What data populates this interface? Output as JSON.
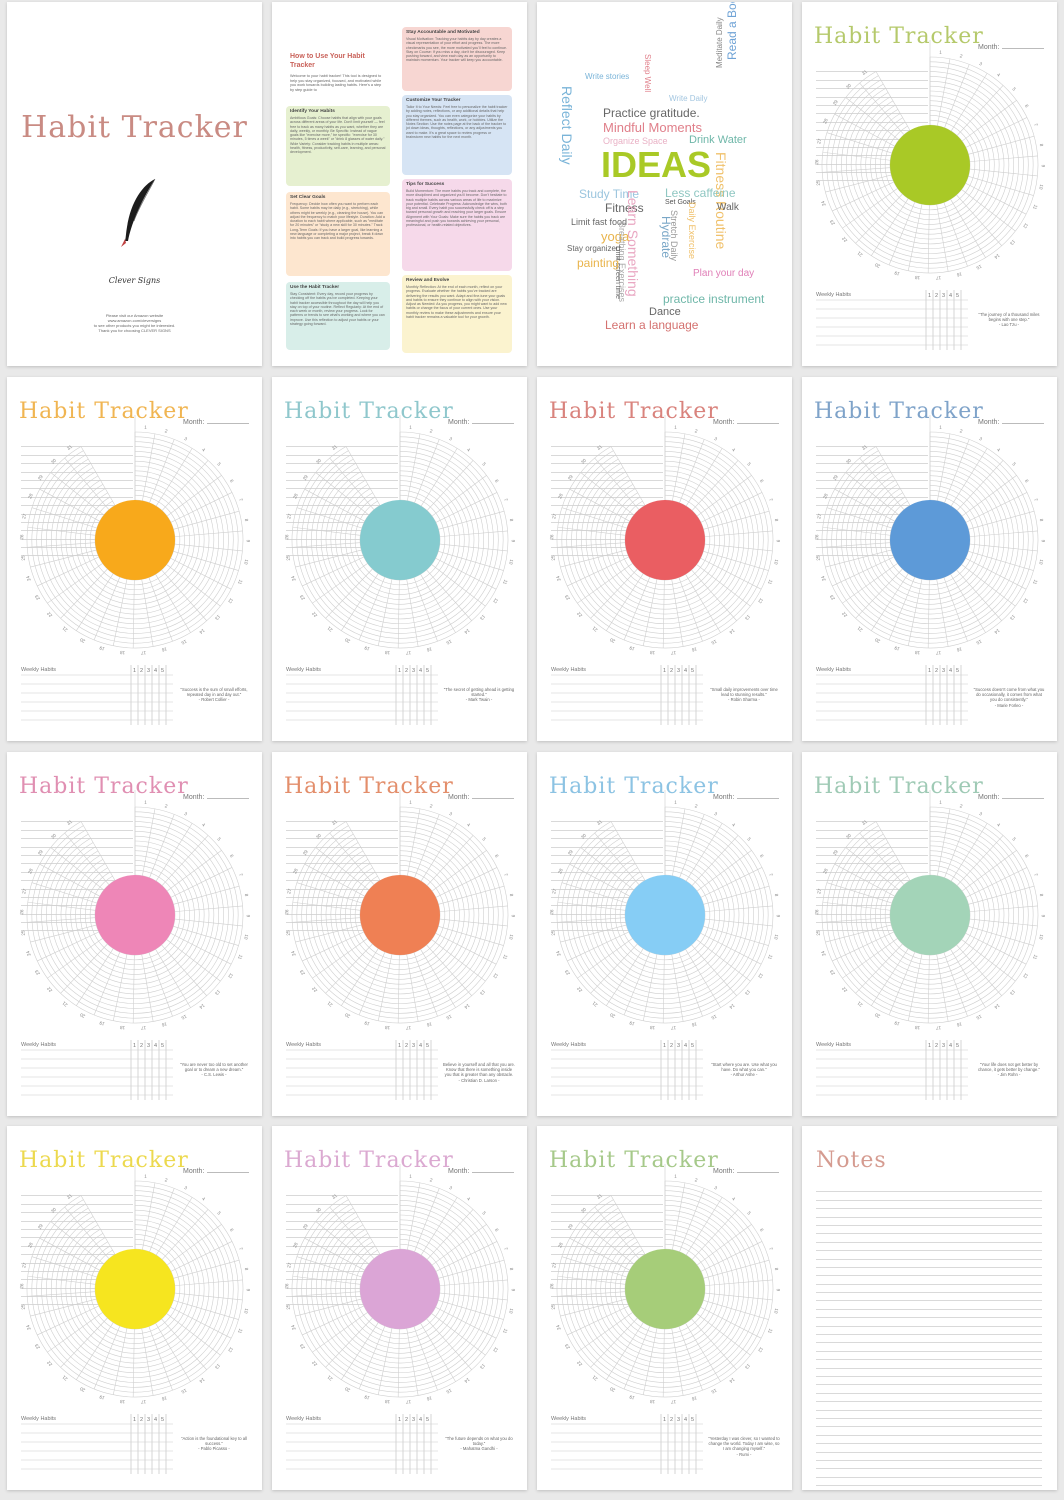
{
  "cover": {
    "title": "Habit Tracker",
    "brand": "Clever Signs",
    "footer": [
      "Please visit our Amazon website",
      "www.amazon.com/cleversigns",
      "to see other products you might be interested.",
      "Thank you for choosing CLEVER SIGNS"
    ]
  },
  "guide": {
    "title": "How to Use Your Habit Tracker",
    "intro": "Welcome to your habit tracker! This tool is designed to help you stay organized, focused, and motivated while you work towards building lasting habits. Here's a step by step guide to",
    "sections": [
      {
        "heading": "Identify Your Habits",
        "color": "#e6f0d0",
        "text": "Ambitious Goals: Choose habits that align with your goals across different areas of your life. Don't limit yourself — feel free to track as many habits as you want, whether they are daily, weekly, or monthly. Be Specific: Instead of vague goals like \"exercise more,\" be specific: \"exercise for 30 minutes, 5 times a week\" or \"drink 8 glasses of water daily.\" Wide Variety: Consider tracking habits in multiple areas: health, fitness, productivity, self-care, learning, and personal development."
      },
      {
        "heading": "Set Clear Goals",
        "color": "#fde6cf",
        "text": "Frequency: Decide how often you want to perform each habit. Some habits may be daily (e.g., stretching), while others might be weekly (e.g., cleaning the house). You can adjust the frequency to match your lifestyle. Duration: Add a duration to each habit where applicable, such as \"meditate for 20 minutes\" or \"study a new skill for 30 minutes.\" Track Long-Term Goals: If you have a larger goal, like learning a new language or completing a major project, break it down into habits you can track and build progress towards."
      },
      {
        "heading": "Use the Habit Tracker",
        "color": "#d8eee9",
        "text": "Stay Consistent: Every day, record your progress by checking off the habits you've completed. Keeping your habit tracker accessible throughout the day will help you stay on top of your routine. Reflect Regularly: At the end of each week or month, review your progress. Look for patterns or trends to see what's working and where you can improve. Use this reflection to adjust your habits or your strategy going forward."
      },
      {
        "heading": "Stay Accountable and Motivated",
        "color": "#f7d6d2",
        "text": "Visual Motivation: Tracking your habits day by day creates a visual representation of your effort and progress. The more checkmarks you see, the more motivated you'll feel to continue. Stay on Course: If you miss a day, don't be discouraged. Keep pushing forward, and view each day as an opportunity to maintain momentum. Your tracker will keep you accountable."
      },
      {
        "heading": "Customize Your Tracker",
        "color": "#d6e4f4",
        "text": "Tailor It to Your Needs: Feel free to personalize the habit tracker by adding notes, reflections, or any additional details that help you stay organized. You can even categorize your habits by different themes, such as health, work, or hobbies. Utilize the Notes Section: Use the notes page at the back of the tracker to jot down ideas, thoughts, reflections, or any adjustments you want to make. It's a great space to review progress or brainstorm new habits for the next month."
      },
      {
        "heading": "Tips for Success",
        "color": "#f6d9ea",
        "text": "Build Momentum: The more habits you track and complete, the more disciplined and organized you'll become. Don't hesitate to track multiple habits across various areas of life to maximize your potential. Celebrate Progress: Acknowledge the wins, both big and small. Every habit you successfully check off is a step toward personal growth and reaching your larger goals. Ensure Alignment with Your Goals: Make sure the habits you track are meaningful and push you towards achieving your personal, professional, or health-related objectives."
      },
      {
        "heading": "Review and Evolve",
        "color": "#fbf3cf",
        "text": "Monthly Reflection: At the end of each month, reflect on your progress. Evaluate whether the habits you've tracked are delivering the results you want. Adapt and fine-tune your goals and habits to ensure they continue to align with your vision. Adjust as Needed: As you progress, you might want to add new habits or change the focus of your current ones. Use your monthly review to make these adjustments and ensure your habit tracker remains a valuable tool for your growth."
      }
    ]
  },
  "ideas": {
    "main": "IDEAS",
    "words": [
      {
        "t": "Write stories",
        "c": "#7ab4d8"
      },
      {
        "t": "Sleep Well",
        "c": "#e07f8a"
      },
      {
        "t": "Write Daily",
        "c": "#a3c6e0"
      },
      {
        "t": "Meditate Daily",
        "c": "#888"
      },
      {
        "t": "Read a Book",
        "c": "#6fa3d6"
      },
      {
        "t": "Reflect Daily",
        "c": "#7ab4d8"
      },
      {
        "t": "Practice gratitude.",
        "c": "#666"
      },
      {
        "t": "Mindful Moments",
        "c": "#e07f8a"
      },
      {
        "t": "Organize Space",
        "c": "#e9b1c5"
      },
      {
        "t": "Drink Water",
        "c": "#6fb7a9"
      },
      {
        "t": "Fitness Routine",
        "c": "#f0c16b"
      },
      {
        "t": "Study Time",
        "c": "#9bc5de"
      },
      {
        "t": "Less caffeine",
        "c": "#8fc7c2"
      },
      {
        "t": "Fitness",
        "c": "#666"
      },
      {
        "t": "Set Goals",
        "c": "#555"
      },
      {
        "t": "Walk",
        "c": "#666"
      },
      {
        "t": "Limit fast food",
        "c": "#666"
      },
      {
        "t": "Learn Something",
        "c": "#e9a7c2"
      },
      {
        "t": "Hydrate",
        "c": "#7aa7c7"
      },
      {
        "t": "Stretch Daily",
        "c": "#999"
      },
      {
        "t": "Daily Exercise",
        "c": "#f0c16b"
      },
      {
        "t": "yoga",
        "c": "#e9b44c"
      },
      {
        "t": "Breathing Exercises",
        "c": "#aaa"
      },
      {
        "t": "Stay organized",
        "c": "#666"
      },
      {
        "t": "Limit screen time",
        "c": "#666"
      },
      {
        "t": "painting",
        "c": "#e9b44c"
      },
      {
        "t": "Plan your day",
        "c": "#e07fb7"
      },
      {
        "t": "Dance",
        "c": "#666"
      },
      {
        "t": "practice instrument",
        "c": "#6fb7a9"
      },
      {
        "t": "Learn a language",
        "c": "#d4716f"
      }
    ]
  },
  "tracker": {
    "title": "Habit Tracker",
    "month_label": "Month:",
    "weekly_label": "Weekly Habits",
    "week_cols": [
      "1",
      "2",
      "3",
      "4",
      "5"
    ],
    "days": [
      "1",
      "2",
      "3",
      "4",
      "5",
      "6",
      "7",
      "8",
      "9",
      "10",
      "11",
      "12",
      "13",
      "14",
      "15",
      "16",
      "17",
      "18",
      "19",
      "20",
      "21",
      "22",
      "23",
      "24",
      "25",
      "26",
      "27",
      "28",
      "29",
      "30",
      "31"
    ]
  },
  "trackers": [
    {
      "color": "#a9c926",
      "title_color": "#b5c96b",
      "quote": "\"The journey of a thousand miles begins with one step.\"",
      "author": "- Lao Tzu -"
    },
    {
      "color": "#f8a91b",
      "title_color": "#f0b552",
      "quote": "\"Success is the sum of small efforts, repeated day in and day out.\"",
      "author": "- Robert Collier -"
    },
    {
      "color": "#85cbcf",
      "title_color": "#8fc7cc",
      "quote": "\"The secret of getting ahead is getting started.\"",
      "author": "- Mark Twain -"
    },
    {
      "color": "#ea5e62",
      "title_color": "#d9837d",
      "quote": "\"Small daily improvements over time lead to stunning results.\"",
      "author": "- Robin Sharma -"
    },
    {
      "color": "#5d9ad8",
      "title_color": "#7fa3c9",
      "quote": "\"Success doesn't come from what you do occasionally, it comes from what you do consistently.\"",
      "author": "- Marie Forleo -"
    },
    {
      "color": "#ee86b7",
      "title_color": "#e08fb2",
      "quote": "\"You are never too old to set another goal or to dream a new dream.\"",
      "author": "- C.S. Lewis -"
    },
    {
      "color": "#ef8054",
      "title_color": "#e38e6b",
      "quote": "Believe in yourself and all that you are. Know that there is something inside you that is greater than any obstacle.",
      "author": "- Christian D. Larson -"
    },
    {
      "color": "#86cdf5",
      "title_color": "#8cc3e3",
      "quote": "\"Start where you are. Use what you have. Do what you can.\"",
      "author": "- Arthur Ashe -"
    },
    {
      "color": "#a3d4b8",
      "title_color": "#9fcab5",
      "quote": "\"Your life does not get better by chance, it gets better by change.\"",
      "author": "- Jim Rohn -"
    },
    {
      "color": "#f6e51f",
      "title_color": "#ecd94e",
      "quote": "\"Action is the foundational key to all success.\"",
      "author": "- Pablo Picasso -"
    },
    {
      "color": "#dba5d6",
      "title_color": "#dba9d1",
      "quote": "\"The future depends on what you do today.\"",
      "author": "- Mahatma Gandhi -"
    },
    {
      "color": "#a6cd79",
      "title_color": "#a6c98a",
      "quote": "\"Yesterday I was clever, so I wanted to change the world. Today I am wise, so I am changing myself.\"",
      "author": "- Rumi -"
    }
  ],
  "notes": {
    "title": "Notes"
  }
}
